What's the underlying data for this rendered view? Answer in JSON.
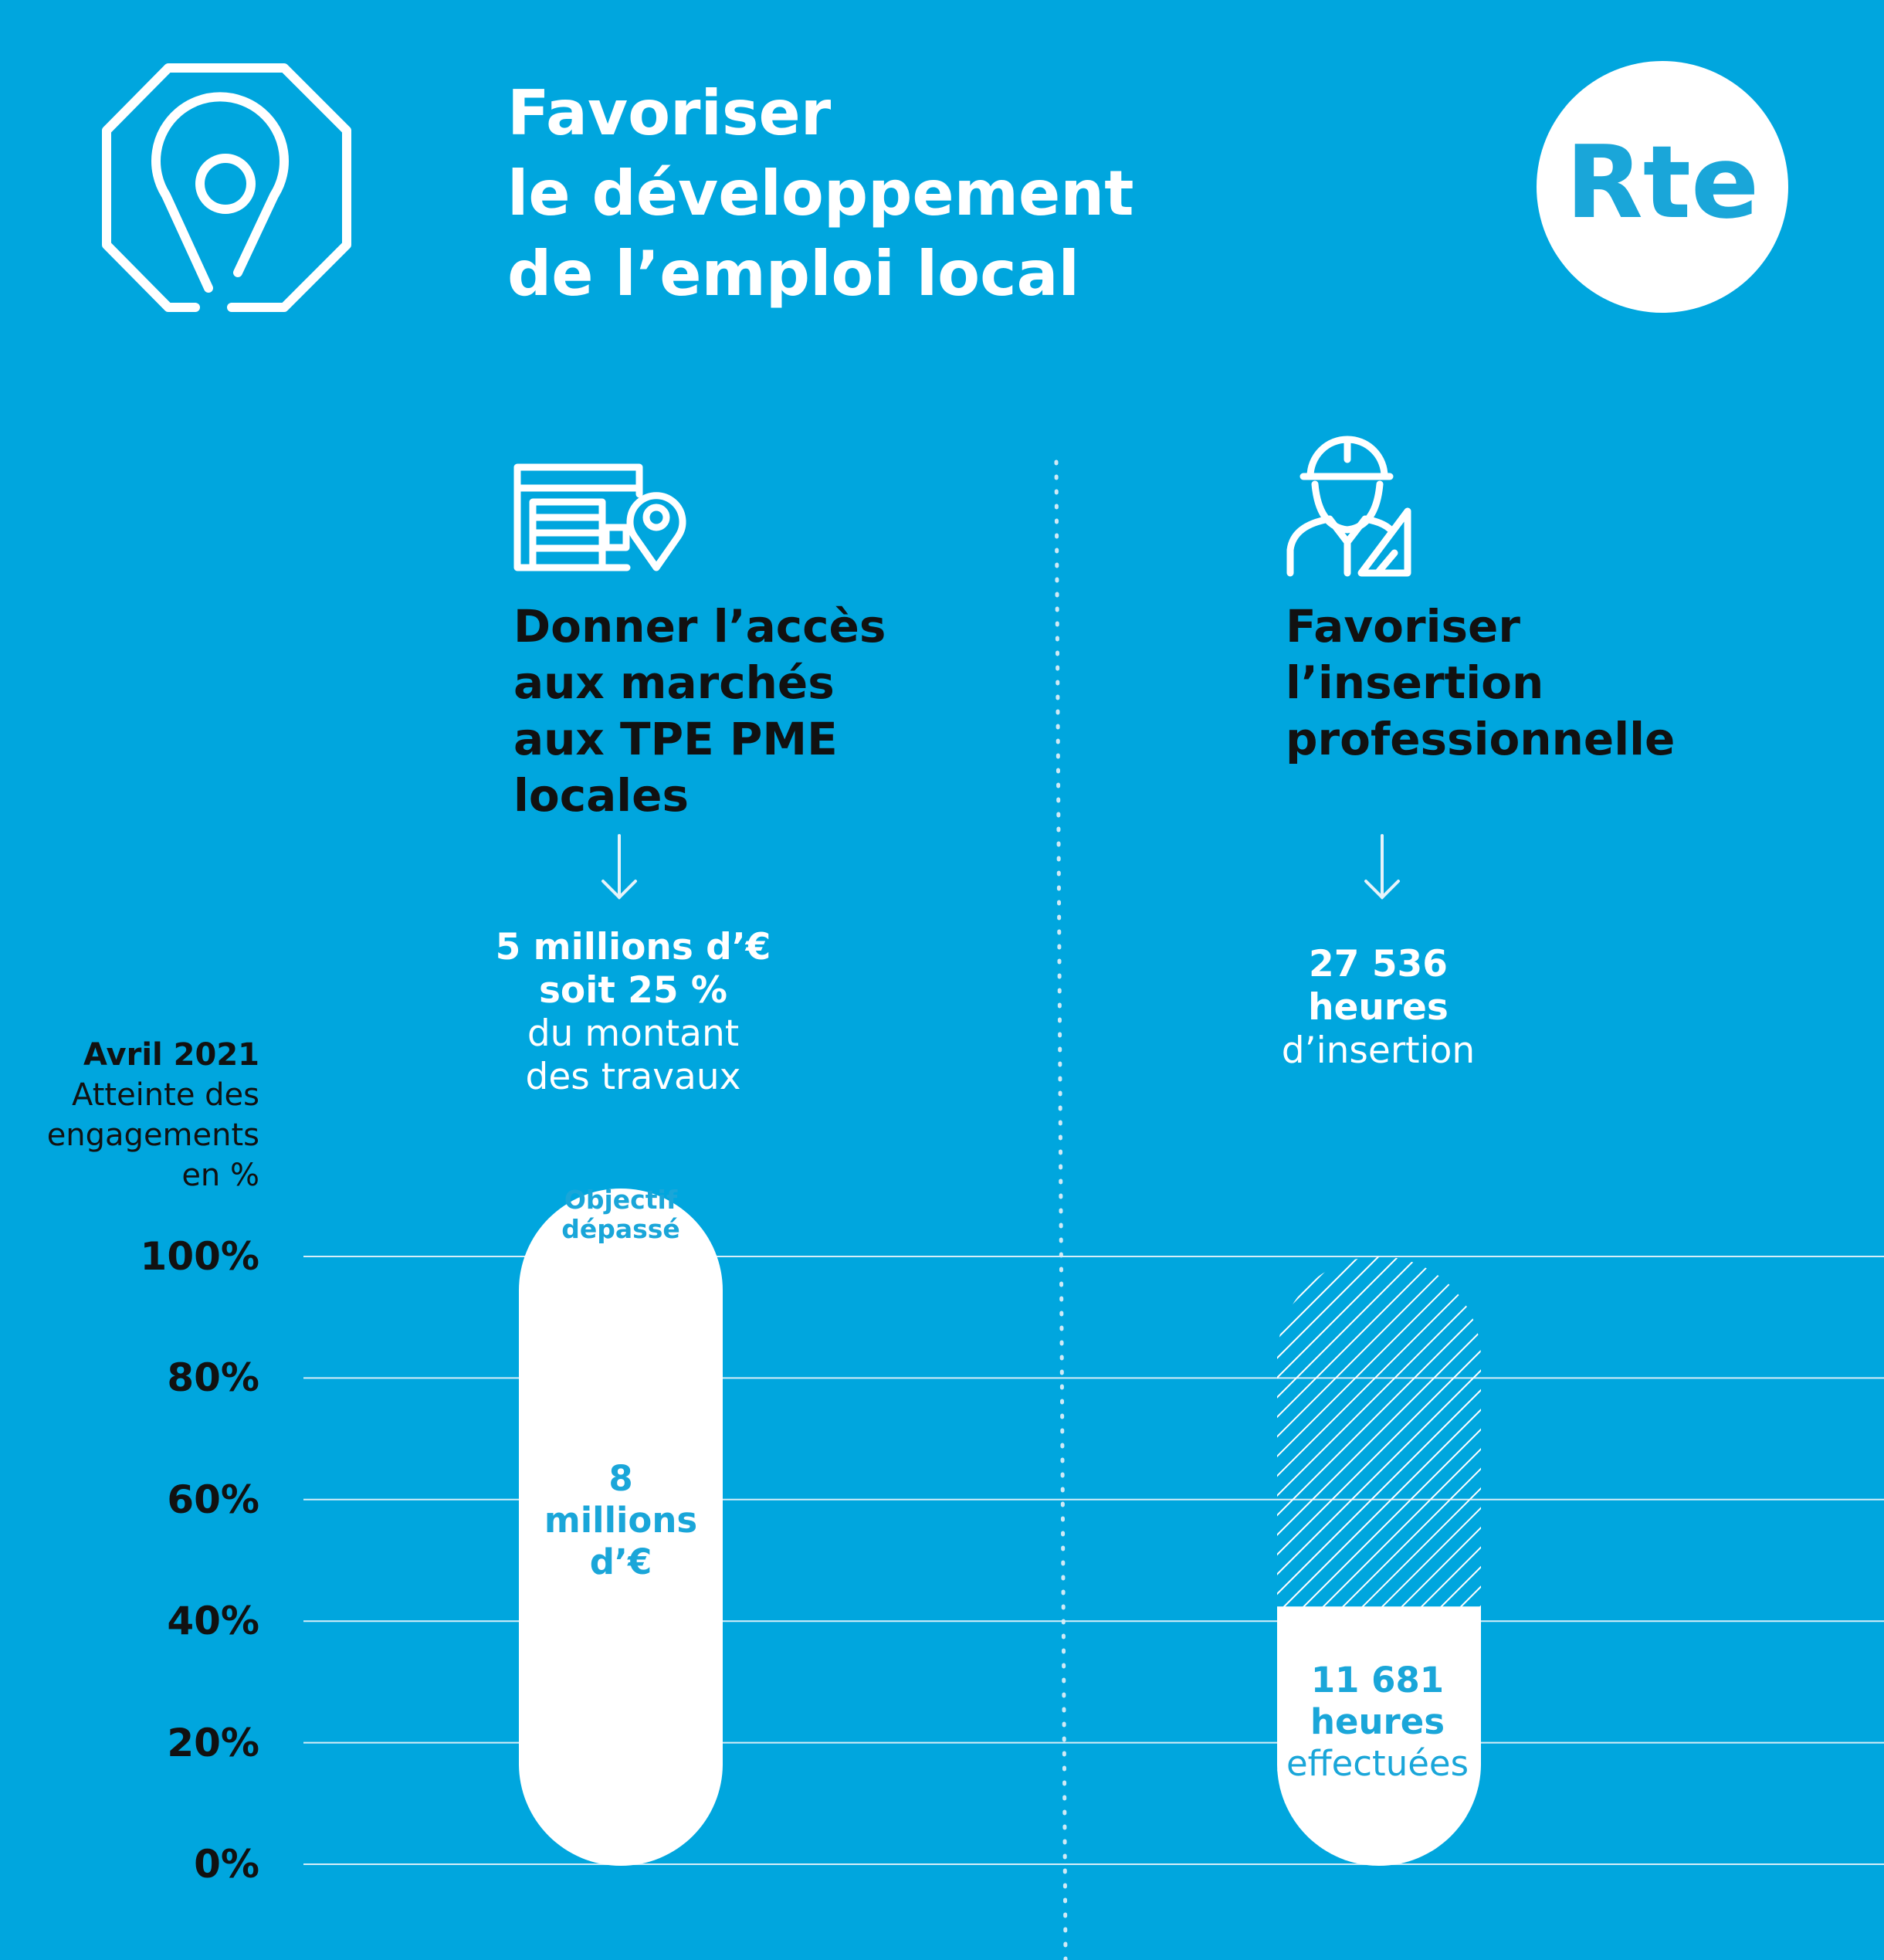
{
  "header": {
    "title_lines": [
      "Favoriser",
      "le développement",
      "de l’emploi local"
    ],
    "logo_text": "Rte"
  },
  "colors": {
    "background": "#00a6de",
    "accent": "#1aa6d9",
    "bar": "#ffffff",
    "text_dark": "#111111"
  },
  "icons": {
    "header": "map-pin-octagon-icon",
    "left_column": "building-location-icon",
    "right_column": "construction-worker-icon",
    "arrow": "arrow-down-icon"
  },
  "columns": [
    {
      "heading_lines": [
        "Donner l’accès",
        "aux marchés",
        "aux TPE PME",
        "locales"
      ],
      "stat_bold_lines": [
        "5 millions d’€",
        "soit 25 %"
      ],
      "stat_lines": [
        "du montant",
        "des travaux"
      ]
    },
    {
      "heading_lines": [
        "Favoriser",
        "l’insertion",
        "professionnelle"
      ],
      "stat_bold_lines": [
        "27 536",
        "heures"
      ],
      "stat_lines": [
        "d’insertion"
      ]
    }
  ],
  "axis": {
    "heading_bold": "Avril 2021",
    "heading_lines": [
      "Atteinte des",
      "engagements",
      "en %"
    ]
  },
  "chart_data": {
    "type": "bar",
    "ylabel": "Atteinte des engagements en %",
    "ylim": [
      0,
      100
    ],
    "yticks": [
      "100%",
      "80%",
      "60%",
      "40%",
      "20%",
      "0%"
    ],
    "grid": true,
    "bars": [
      {
        "value": 100,
        "exceeded": true,
        "top_label_lines": [
          "Objectif",
          "dépassé"
        ],
        "label_lines": [
          "8",
          "millions",
          "d’€"
        ]
      },
      {
        "value": 42.4,
        "target": 100,
        "label_lines": [
          "11 681",
          "heures"
        ],
        "label_sub": "effectuées"
      }
    ]
  }
}
